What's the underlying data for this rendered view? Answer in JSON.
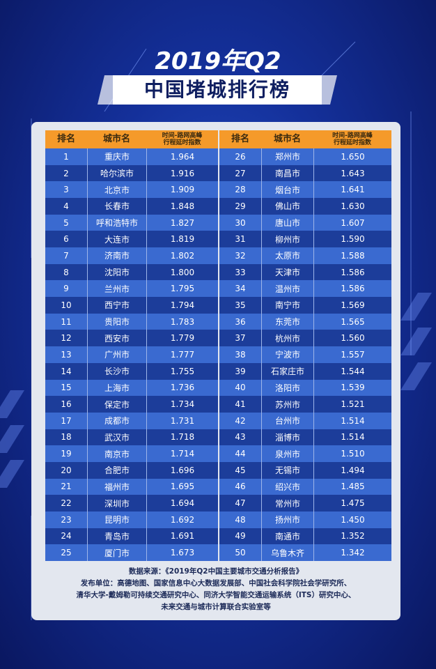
{
  "header": {
    "year_title": "2019年Q2",
    "title": "中国堵城排行榜"
  },
  "table": {
    "columns": [
      "排名",
      "城市名",
      [
        "时间-路网高峰",
        "行程延时指数"
      ]
    ],
    "rows": [
      [
        1,
        "重庆市",
        "1.964"
      ],
      [
        2,
        "哈尔滨市",
        "1.916"
      ],
      [
        3,
        "北京市",
        "1.909"
      ],
      [
        4,
        "长春市",
        "1.848"
      ],
      [
        5,
        "呼和浩特市",
        "1.827"
      ],
      [
        6,
        "大连市",
        "1.819"
      ],
      [
        7,
        "济南市",
        "1.802"
      ],
      [
        8,
        "沈阳市",
        "1.800"
      ],
      [
        9,
        "兰州市",
        "1.795"
      ],
      [
        10,
        "西宁市",
        "1.794"
      ],
      [
        11,
        "贵阳市",
        "1.783"
      ],
      [
        12,
        "西安市",
        "1.779"
      ],
      [
        13,
        "广州市",
        "1.777"
      ],
      [
        14,
        "长沙市",
        "1.755"
      ],
      [
        15,
        "上海市",
        "1.736"
      ],
      [
        16,
        "保定市",
        "1.734"
      ],
      [
        17,
        "成都市",
        "1.731"
      ],
      [
        18,
        "武汉市",
        "1.718"
      ],
      [
        19,
        "南京市",
        "1.714"
      ],
      [
        20,
        "合肥市",
        "1.696"
      ],
      [
        21,
        "福州市",
        "1.695"
      ],
      [
        22,
        "深圳市",
        "1.694"
      ],
      [
        23,
        "昆明市",
        "1.692"
      ],
      [
        24,
        "青岛市",
        "1.691"
      ],
      [
        25,
        "厦门市",
        "1.673"
      ],
      [
        26,
        "郑州市",
        "1.650"
      ],
      [
        27,
        "南昌市",
        "1.643"
      ],
      [
        28,
        "烟台市",
        "1.641"
      ],
      [
        29,
        "佛山市",
        "1.630"
      ],
      [
        30,
        "唐山市",
        "1.607"
      ],
      [
        31,
        "柳州市",
        "1.590"
      ],
      [
        32,
        "太原市",
        "1.588"
      ],
      [
        33,
        "天津市",
        "1.586"
      ],
      [
        34,
        "温州市",
        "1.586"
      ],
      [
        35,
        "南宁市",
        "1.569"
      ],
      [
        36,
        "东莞市",
        "1.565"
      ],
      [
        37,
        "杭州市",
        "1.560"
      ],
      [
        38,
        "宁波市",
        "1.557"
      ],
      [
        39,
        "石家庄市",
        "1.544"
      ],
      [
        40,
        "洛阳市",
        "1.539"
      ],
      [
        41,
        "苏州市",
        "1.521"
      ],
      [
        42,
        "台州市",
        "1.514"
      ],
      [
        43,
        "淄博市",
        "1.514"
      ],
      [
        44,
        "泉州市",
        "1.510"
      ],
      [
        45,
        "无锡市",
        "1.494"
      ],
      [
        46,
        "绍兴市",
        "1.485"
      ],
      [
        47,
        "常州市",
        "1.475"
      ],
      [
        48,
        "扬州市",
        "1.450"
      ],
      [
        49,
        "南通市",
        "1.352"
      ],
      [
        50,
        "乌鲁木齐",
        "1.342"
      ]
    ]
  },
  "footer": {
    "lines": [
      "数据来源：《2019年Q2中国主要城市交通分析报告》",
      "发布单位：高德地图、国家信息中心大数据发展部、中国社会科学院社会学研究所、",
      "清华大学-戴姆勒可持续交通研究中心、同济大学智能交通运输系统（ITS）研究中心、",
      "未来交通与城市计算联合实验室等"
    ]
  }
}
